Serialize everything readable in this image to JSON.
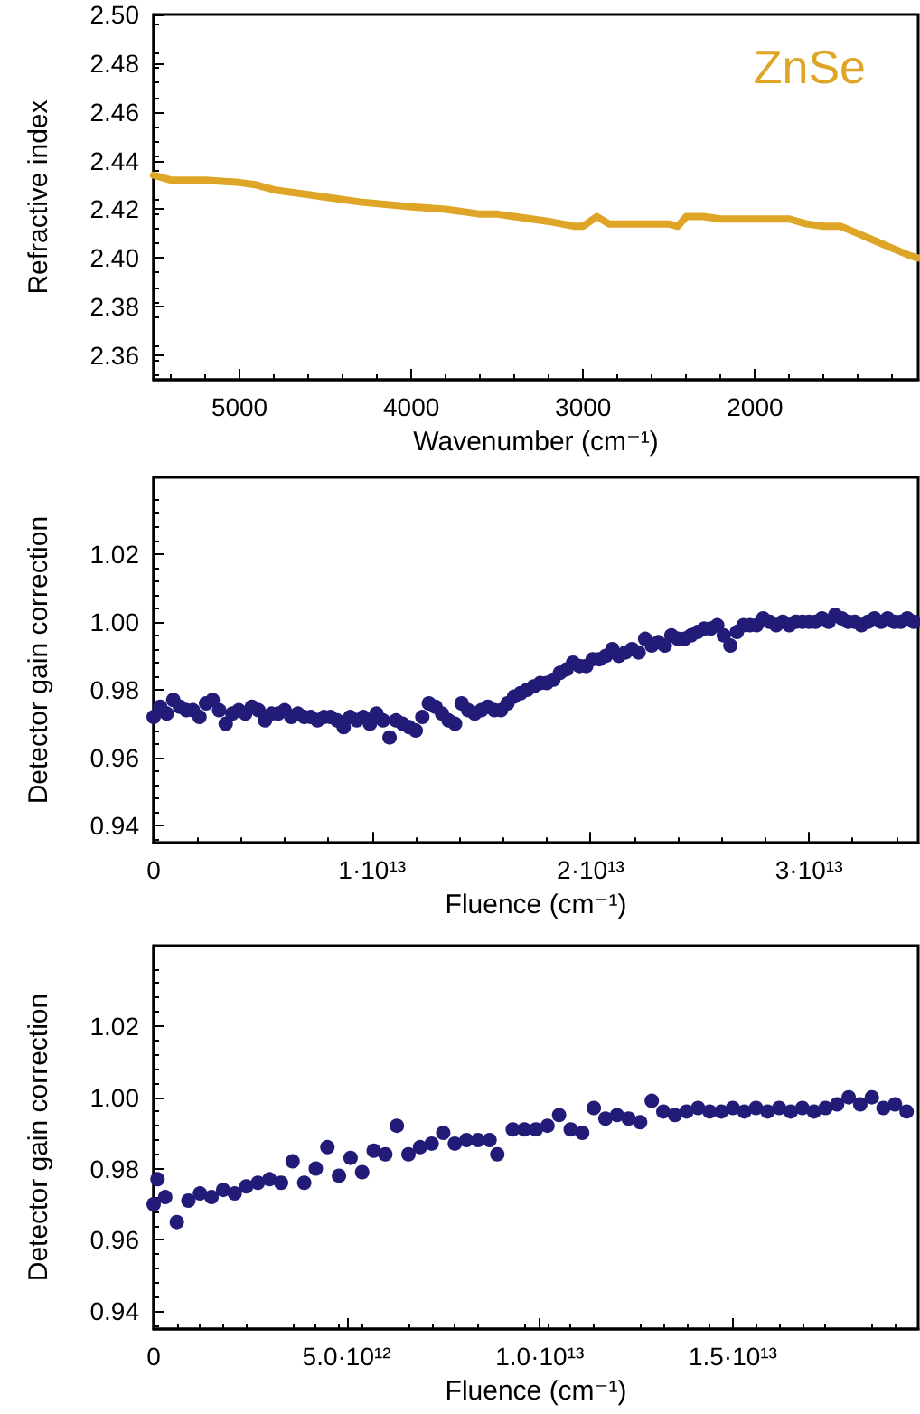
{
  "chart_data": [
    {
      "type": "line",
      "xlabel": "Wavenumber (cm⁻¹)",
      "ylabel": "Refractive index",
      "x": [
        5500,
        5400,
        5200,
        5000,
        4900,
        4800,
        4600,
        4500,
        4300,
        4000,
        3800,
        3600,
        3500,
        3400,
        3200,
        3050,
        3000,
        2920,
        2850,
        2750,
        2600,
        2500,
        2450,
        2400,
        2300,
        2200,
        2000,
        1800,
        1700,
        1600,
        1500,
        1400,
        1300,
        1200,
        1100,
        1050
      ],
      "series": [
        {
          "name": "ZnSe",
          "color": "#dea526",
          "values": [
            2.434,
            2.432,
            2.432,
            2.431,
            2.43,
            2.428,
            2.426,
            2.425,
            2.423,
            2.421,
            2.42,
            2.418,
            2.418,
            2.417,
            2.415,
            2.413,
            2.413,
            2.417,
            2.414,
            2.414,
            2.414,
            2.414,
            2.413,
            2.417,
            2.417,
            2.416,
            2.416,
            2.416,
            2.414,
            2.413,
            2.413,
            2.41,
            2.407,
            2.404,
            2.401,
            2.4
          ]
        }
      ],
      "xlim": [
        5500,
        1050
      ],
      "xticks": [
        5000,
        4000,
        3000,
        2000
      ],
      "ylim": [
        2.35,
        2.5
      ],
      "yticks": [
        {
          "value": 2.36,
          "label": "2.36"
        },
        {
          "value": 2.38,
          "label": "2.38"
        },
        {
          "value": 2.4,
          "label": "2.40"
        },
        {
          "value": 2.42,
          "label": "2.42"
        },
        {
          "value": 2.44,
          "label": "2.44"
        },
        {
          "value": 2.46,
          "label": "2.46"
        },
        {
          "value": 2.48,
          "label": "2.48"
        },
        {
          "value": 2.5,
          "label": "2.50"
        }
      ],
      "grid": false,
      "marker": "none",
      "line_style": "solid"
    },
    {
      "type": "scatter",
      "xlabel": "Fluence (cm⁻¹)",
      "ylabel": "Detector gain correction",
      "x": [
        0,
        300000000000.0,
        600000000000.0,
        900000000000.0,
        1200000000000.0,
        1500000000000.0,
        1800000000000.0,
        2100000000000.0,
        2400000000000.0,
        2700000000000.0,
        3000000000000.0,
        3300000000000.0,
        3600000000000.0,
        3900000000000.0,
        4200000000000.0,
        4500000000000.0,
        4800000000000.0,
        5100000000000.0,
        5400000000000.0,
        5700000000000.0,
        6000000000000.0,
        6300000000000.0,
        6600000000000.0,
        6900000000000.0,
        7200000000000.0,
        7500000000000.0,
        7800000000000.0,
        8100000000000.0,
        8400000000000.0,
        8700000000000.0,
        9000000000000.0,
        9300000000000.0,
        9600000000000.0,
        9900000000000.0,
        10200000000000.0,
        10500000000000.0,
        10800000000000.0,
        11100000000000.0,
        11400000000000.0,
        11700000000000.0,
        12000000000000.0,
        12300000000000.0,
        12600000000000.0,
        12900000000000.0,
        13200000000000.0,
        13500000000000.0,
        13800000000000.0,
        14100000000000.0,
        14400000000000.0,
        14700000000000.0,
        15000000000000.0,
        15300000000000.0,
        15600000000000.0,
        15900000000000.0,
        16200000000000.0,
        16500000000000.0,
        16800000000000.0,
        17100000000000.0,
        17400000000000.0,
        17700000000000.0,
        18000000000000.0,
        18300000000000.0,
        18600000000000.0,
        18900000000000.0,
        19200000000000.0,
        19500000000000.0,
        19800000000000.0,
        20100000000000.0,
        20400000000000.0,
        20700000000000.0,
        21000000000000.0,
        21300000000000.0,
        21600000000000.0,
        21900000000000.0,
        22200000000000.0,
        22500000000000.0,
        22800000000000.0,
        23100000000000.0,
        23400000000000.0,
        23700000000000.0,
        24000000000000.0,
        24300000000000.0,
        24600000000000.0,
        24900000000000.0,
        25200000000000.0,
        25500000000000.0,
        25800000000000.0,
        26100000000000.0,
        26400000000000.0,
        26700000000000.0,
        27000000000000.0,
        27300000000000.0,
        27600000000000.0,
        27900000000000.0,
        28200000000000.0,
        28500000000000.0,
        28800000000000.0,
        29100000000000.0,
        29400000000000.0,
        29700000000000.0,
        30000000000000.0,
        30300000000000.0,
        30600000000000.0,
        30900000000000.0,
        31200000000000.0,
        31500000000000.0,
        31800000000000.0,
        32100000000000.0,
        32400000000000.0,
        32700000000000.0,
        33000000000000.0,
        33300000000000.0,
        33600000000000.0,
        33900000000000.0,
        34200000000000.0,
        34500000000000.0,
        34800000000000.0
      ],
      "series": [
        {
          "color": "#221c78",
          "values": [
            0.972,
            0.975,
            0.973,
            0.977,
            0.975,
            0.974,
            0.974,
            0.972,
            0.976,
            0.977,
            0.974,
            0.97,
            0.973,
            0.974,
            0.973,
            0.975,
            0.974,
            0.971,
            0.973,
            0.973,
            0.974,
            0.972,
            0.973,
            0.972,
            0.972,
            0.971,
            0.972,
            0.972,
            0.971,
            0.969,
            0.972,
            0.971,
            0.972,
            0.97,
            0.973,
            0.971,
            0.966,
            0.971,
            0.97,
            0.969,
            0.968,
            0.972,
            0.976,
            0.975,
            0.973,
            0.971,
            0.97,
            0.976,
            0.974,
            0.973,
            0.974,
            0.975,
            0.974,
            0.974,
            0.976,
            0.978,
            0.979,
            0.98,
            0.981,
            0.982,
            0.982,
            0.983,
            0.985,
            0.986,
            0.988,
            0.987,
            0.987,
            0.989,
            0.989,
            0.99,
            0.992,
            0.99,
            0.991,
            0.992,
            0.991,
            0.995,
            0.993,
            0.994,
            0.993,
            0.996,
            0.995,
            0.995,
            0.996,
            0.997,
            0.998,
            0.998,
            0.999,
            0.996,
            0.993,
            0.997,
            0.999,
            0.999,
            0.999,
            1.001,
            1.0,
            0.999,
            1.0,
            0.999,
            1.0,
            1.0,
            1.0,
            1.0,
            1.001,
            1.0,
            1.002,
            1.001,
            1.0,
            1.0,
            0.999,
            1.0,
            1.001,
            1.0,
            1.001,
            1.0,
            1.0,
            1.001,
            1.0
          ]
        }
      ],
      "xlim": [
        0,
        35000000000000.0
      ],
      "xticks": [
        0,
        {
          "value": 10000000000000.0,
          "label": "1·10¹³"
        },
        {
          "value": 20000000000000.0,
          "label": "2·10¹³"
        },
        {
          "value": 30000000000000.0,
          "label": "3·10¹³"
        }
      ],
      "ylim": [
        0.935,
        1.0425
      ],
      "yticks": [
        {
          "value": 0.94,
          "label": "0.94"
        },
        {
          "value": 0.96,
          "label": "0.96"
        },
        {
          "value": 0.98,
          "label": "0.98"
        },
        {
          "value": 1,
          "label": "1.00"
        },
        {
          "value": 1.02,
          "label": "1.02"
        }
      ],
      "grid": false,
      "marker": "circle"
    },
    {
      "type": "scatter",
      "xlabel": "Fluence (cm⁻¹)",
      "ylabel": "Detector gain correction",
      "x": [
        0,
        100000000000.0,
        300000000000.0,
        600000000000.0,
        900000000000.0,
        1200000000000.0,
        1500000000000.0,
        1800000000000.0,
        2100000000000.0,
        2400000000000.0,
        2700000000000.0,
        3000000000000.0,
        3300000000000.0,
        3600000000000.0,
        3900000000000.0,
        4200000000000.0,
        4500000000000.0,
        4800000000000.0,
        5100000000000.0,
        5400000000000.0,
        5700000000000.0,
        6000000000000.0,
        6300000000000.0,
        6600000000000.0,
        6900000000000.0,
        7200000000000.0,
        7500000000000.0,
        7800000000000.0,
        8100000000000.0,
        8400000000000.0,
        8700000000000.0,
        8900000000000.0,
        9300000000000.0,
        9600000000000.0,
        9900000000000.0,
        10200000000000.0,
        10500000000000.0,
        10800000000000.0,
        11100000000000.0,
        11400000000000.0,
        11700000000000.0,
        12000000000000.0,
        12300000000000.0,
        12600000000000.0,
        12900000000000.0,
        13200000000000.0,
        13500000000000.0,
        13800000000000.0,
        14100000000000.0,
        14400000000000.0,
        14700000000000.0,
        15000000000000.0,
        15300000000000.0,
        15600000000000.0,
        15900000000000.0,
        16200000000000.0,
        16500000000000.0,
        16800000000000.0,
        17100000000000.0,
        17400000000000.0,
        17700000000000.0,
        18000000000000.0,
        18300000000000.0,
        18600000000000.0,
        18900000000000.0,
        19200000000000.0,
        19500000000000.0
      ],
      "series": [
        {
          "color": "#221c78",
          "values": [
            0.97,
            0.977,
            0.972,
            0.965,
            0.971,
            0.973,
            0.972,
            0.974,
            0.973,
            0.975,
            0.976,
            0.977,
            0.976,
            0.982,
            0.976,
            0.98,
            0.986,
            0.978,
            0.983,
            0.979,
            0.985,
            0.984,
            0.992,
            0.984,
            0.986,
            0.987,
            0.99,
            0.987,
            0.988,
            0.988,
            0.988,
            0.984,
            0.991,
            0.991,
            0.991,
            0.992,
            0.995,
            0.991,
            0.99,
            0.997,
            0.994,
            0.995,
            0.994,
            0.993,
            0.999,
            0.996,
            0.995,
            0.996,
            0.997,
            0.996,
            0.996,
            0.997,
            0.996,
            0.997,
            0.996,
            0.997,
            0.996,
            0.997,
            0.996,
            0.997,
            0.998,
            1.0,
            0.998,
            1.0,
            0.997,
            0.998,
            0.996
          ]
        }
      ],
      "xlim": [
        0,
        19800000000000.0
      ],
      "xticks": [
        0,
        {
          "value": 5000000000000.0,
          "label": "5.0·10¹²"
        },
        {
          "value": 10000000000000.0,
          "label": "1.0·10¹³"
        },
        {
          "value": 15000000000000.0,
          "label": "1.5·10¹³"
        }
      ],
      "ylim": [
        0.935,
        1.0425
      ],
      "yticks": [
        {
          "value": 0.94,
          "label": "0.94"
        },
        {
          "value": 0.96,
          "label": "0.96"
        },
        {
          "value": 0.98,
          "label": "0.98"
        },
        {
          "value": 1,
          "label": "1.00"
        },
        {
          "value": 1.02,
          "label": "1.02"
        }
      ],
      "grid": false,
      "marker": "circle"
    }
  ]
}
